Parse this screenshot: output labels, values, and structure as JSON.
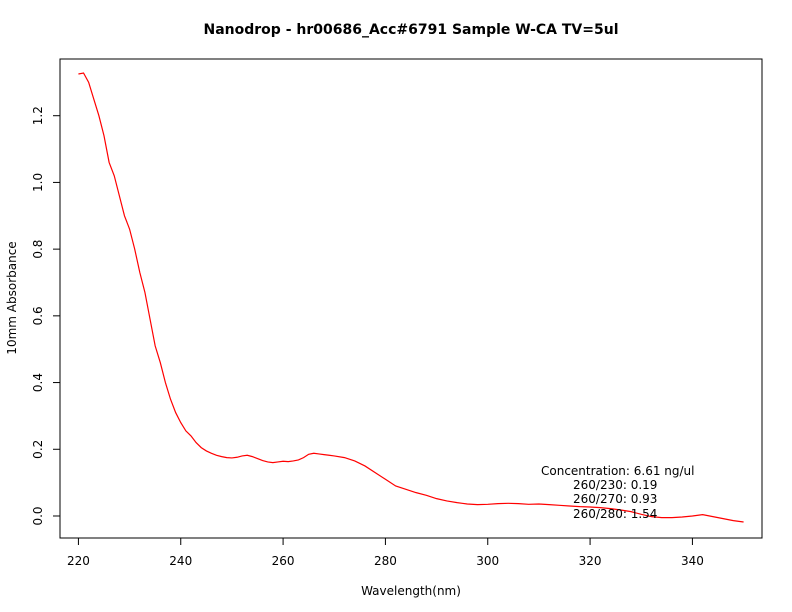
{
  "chart_data": {
    "type": "line",
    "title": "Nanodrop - hr00686_Acc#6791 Sample W-CA TV=5ul",
    "xlabel": "Wavelength(nm)",
    "ylabel": "10mm Absorbance",
    "xlim": [
      216.4,
      353.6
    ],
    "ylim": [
      -0.066,
      1.37
    ],
    "x_ticks": [
      220,
      240,
      260,
      280,
      300,
      320,
      340
    ],
    "y_ticks": [
      0.0,
      0.2,
      0.4,
      0.6,
      0.8,
      1.0,
      1.2
    ],
    "x_tick_labels": [
      "220",
      "240",
      "260",
      "280",
      "300",
      "320",
      "340"
    ],
    "y_tick_labels": [
      "0.0",
      "0.2",
      "0.4",
      "0.6",
      "0.8",
      "1.0",
      "1.2"
    ],
    "grid": false,
    "legend": "none",
    "series_color": "#ff0000",
    "series": [
      {
        "x": [
          220,
          221,
          222,
          223,
          224,
          225,
          226,
          227,
          228,
          229,
          230,
          231,
          232,
          233,
          234,
          235,
          236,
          237,
          238,
          239,
          240,
          241,
          242,
          243,
          244,
          245,
          246,
          247,
          248,
          249,
          250,
          251,
          252,
          253,
          254,
          255,
          256,
          257,
          258,
          259,
          260,
          261,
          262,
          263,
          264,
          265,
          266,
          267,
          268,
          269,
          270,
          272,
          274,
          276,
          278,
          280,
          282,
          284,
          286,
          288,
          290,
          292,
          294,
          295,
          296,
          298,
          300,
          302,
          304,
          306,
          308,
          310,
          312,
          314,
          316,
          318,
          320,
          322,
          324,
          326,
          328,
          330,
          332,
          334,
          336,
          338,
          340,
          342,
          344,
          346,
          348,
          350
        ],
        "y": [
          1.325,
          1.328,
          1.3,
          1.25,
          1.2,
          1.14,
          1.06,
          1.02,
          0.96,
          0.9,
          0.86,
          0.8,
          0.73,
          0.67,
          0.59,
          0.51,
          0.46,
          0.4,
          0.35,
          0.31,
          0.28,
          0.255,
          0.24,
          0.22,
          0.205,
          0.195,
          0.188,
          0.182,
          0.178,
          0.175,
          0.174,
          0.176,
          0.18,
          0.182,
          0.178,
          0.172,
          0.166,
          0.162,
          0.16,
          0.162,
          0.164,
          0.163,
          0.165,
          0.168,
          0.175,
          0.185,
          0.188,
          0.186,
          0.184,
          0.182,
          0.18,
          0.175,
          0.165,
          0.15,
          0.13,
          0.11,
          0.09,
          0.08,
          0.07,
          0.062,
          0.052,
          0.045,
          0.04,
          0.038,
          0.036,
          0.034,
          0.035,
          0.037,
          0.038,
          0.037,
          0.035,
          0.036,
          0.034,
          0.032,
          0.03,
          0.028,
          0.027,
          0.025,
          0.022,
          0.018,
          0.013,
          0.005,
          -0.002,
          -0.005,
          -0.005,
          -0.003,
          0.0,
          0.004,
          -0.002,
          -0.008,
          -0.014,
          -0.018
        ]
      }
    ],
    "annotation": {
      "concentration": "Concentration: 6.61 ng/ul",
      "ratio_230": "260/230: 0.19",
      "ratio_270": "260/270: 0.93",
      "ratio_280": "260/280: 1.54"
    }
  }
}
